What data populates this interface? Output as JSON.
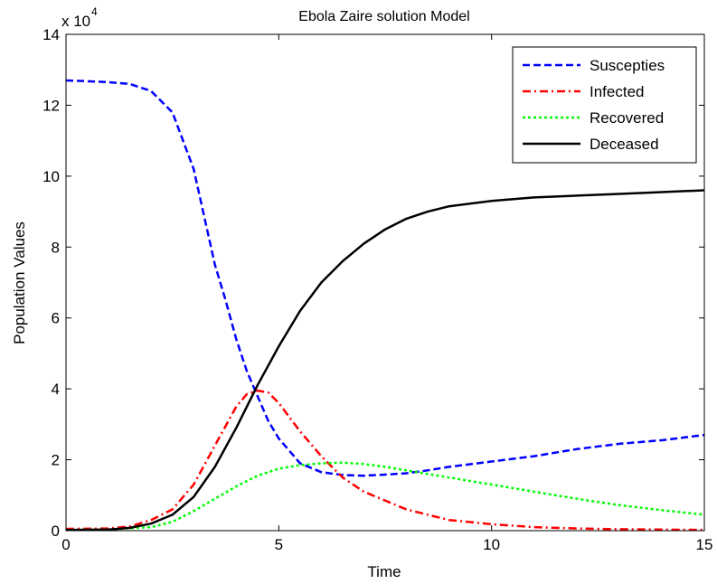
{
  "chart_data": {
    "type": "line",
    "title": "Ebola Zaire solution Model",
    "xlabel": "Time",
    "ylabel": "Population Values",
    "y_multiplier_base": "x 10",
    "y_multiplier_exp": "4",
    "xlim": [
      0,
      15
    ],
    "ylim": [
      0,
      14
    ],
    "x_ticks": [
      0,
      5,
      10,
      15
    ],
    "y_ticks": [
      0,
      2,
      4,
      6,
      8,
      10,
      12,
      14
    ],
    "grid": false,
    "legend_position": "top-right",
    "series": [
      {
        "name": "Suscepties",
        "color": "#0000ff",
        "style": "dashed",
        "x": [
          0,
          0.5,
          1,
          1.5,
          2,
          2.5,
          3,
          3.5,
          3.75,
          4,
          4.25,
          4.5,
          4.75,
          5,
          5.5,
          6,
          6.5,
          7,
          7.5,
          8,
          8.5,
          9,
          10,
          11,
          12,
          13,
          14,
          15
        ],
        "y": [
          12.7,
          12.68,
          12.65,
          12.6,
          12.4,
          11.8,
          10.2,
          7.5,
          6.5,
          5.4,
          4.5,
          3.8,
          3.1,
          2.6,
          1.9,
          1.65,
          1.57,
          1.55,
          1.58,
          1.62,
          1.7,
          1.8,
          1.95,
          2.1,
          2.3,
          2.45,
          2.55,
          2.7
        ]
      },
      {
        "name": "Infected",
        "color": "#ff0000",
        "style": "dash-dot",
        "x": [
          0,
          1,
          1.5,
          2,
          2.5,
          3,
          3.5,
          4,
          4.25,
          4.5,
          4.75,
          5,
          5.25,
          5.5,
          6,
          6.5,
          7,
          8,
          9,
          10,
          11,
          12,
          13,
          14,
          15
        ],
        "y": [
          0.05,
          0.06,
          0.12,
          0.3,
          0.6,
          1.3,
          2.4,
          3.5,
          3.85,
          3.95,
          3.9,
          3.6,
          3.2,
          2.8,
          2.1,
          1.5,
          1.1,
          0.6,
          0.3,
          0.18,
          0.1,
          0.06,
          0.04,
          0.03,
          0.02
        ]
      },
      {
        "name": "Recovered",
        "color": "#00ff00",
        "style": "dotted",
        "x": [
          0,
          1,
          2,
          2.5,
          3,
          3.5,
          4,
          4.5,
          5,
          5.5,
          6,
          6.5,
          7,
          7.5,
          8,
          9,
          10,
          11,
          12,
          13,
          14,
          15
        ],
        "y": [
          0.02,
          0.03,
          0.1,
          0.25,
          0.55,
          0.9,
          1.25,
          1.55,
          1.75,
          1.85,
          1.9,
          1.92,
          1.88,
          1.8,
          1.7,
          1.5,
          1.3,
          1.1,
          0.9,
          0.72,
          0.58,
          0.45
        ]
      },
      {
        "name": "Deceased",
        "color": "#000000",
        "style": "solid",
        "x": [
          0,
          1,
          1.5,
          2,
          2.5,
          3,
          3.5,
          4,
          4.5,
          5,
          5.5,
          6,
          6.5,
          7,
          7.5,
          8,
          8.5,
          9,
          10,
          11,
          12,
          13,
          14,
          15
        ],
        "y": [
          0.02,
          0.03,
          0.08,
          0.2,
          0.45,
          0.95,
          1.8,
          2.9,
          4.1,
          5.2,
          6.2,
          7.0,
          7.6,
          8.1,
          8.5,
          8.8,
          9.0,
          9.15,
          9.3,
          9.4,
          9.45,
          9.5,
          9.55,
          9.6
        ]
      }
    ]
  }
}
